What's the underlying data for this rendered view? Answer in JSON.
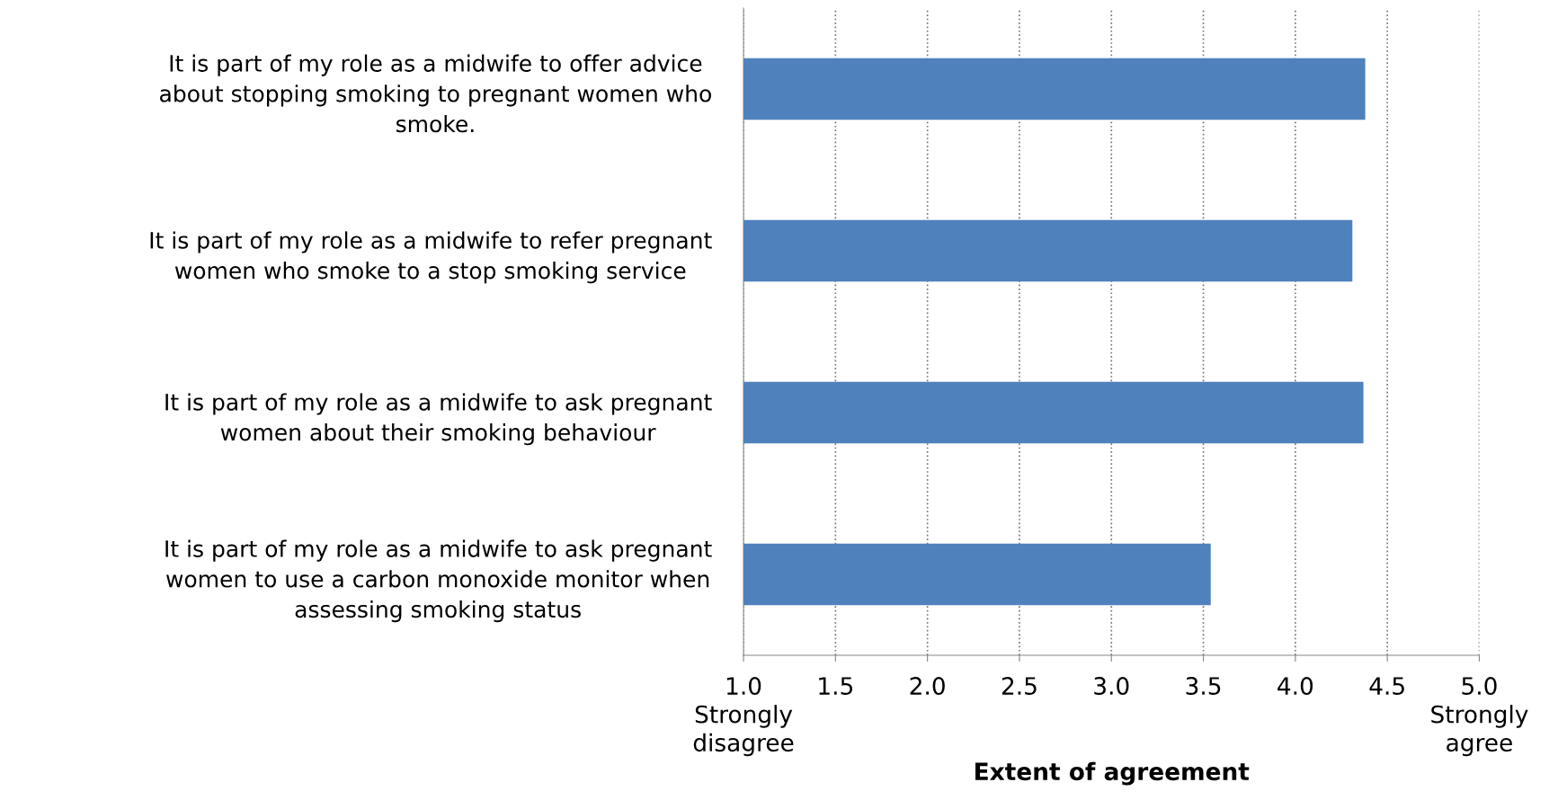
{
  "chart_data": {
    "type": "bar",
    "orientation": "horizontal",
    "xlabel": "Extent of agreement",
    "categories": [
      "It is part of my role as a midwife to offer advice\nabout stopping smoking to pregnant women who\nsmoke.",
      "It is part of my role as a midwife to refer pregnant\nwomen who smoke to a stop smoking service",
      "It is part of my role as a midwife to ask pregnant\nwomen about their smoking behaviour",
      "It is part of my role as a midwife to ask pregnant\nwomen to use a carbon monoxide monitor when\nassessing smoking status"
    ],
    "values": [
      4.38,
      4.31,
      4.37,
      3.54
    ],
    "color": "#4f81bd",
    "xlim": [
      1.0,
      5.0
    ],
    "xticks": [
      {
        "value": 1.0,
        "label": "1.0\nStrongly\ndisagree"
      },
      {
        "value": 1.5,
        "label": "1.5"
      },
      {
        "value": 2.0,
        "label": "2.0"
      },
      {
        "value": 2.5,
        "label": "2.5"
      },
      {
        "value": 3.0,
        "label": "3.0"
      },
      {
        "value": 3.5,
        "label": "3.5"
      },
      {
        "value": 4.0,
        "label": "4.0"
      },
      {
        "value": 4.5,
        "label": "4.5"
      },
      {
        "value": 5.0,
        "label": "5.0\nStrongly\nagree"
      }
    ],
    "grid": "x"
  }
}
